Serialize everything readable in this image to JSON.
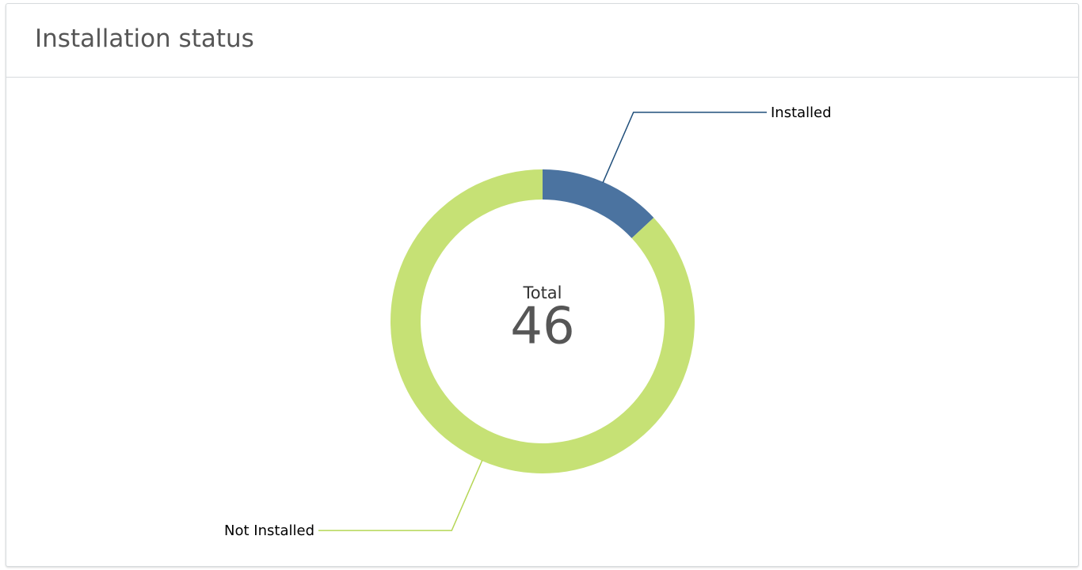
{
  "chart_data": {
    "type": "donut",
    "title": "Installation status",
    "categories": [
      "Installed",
      "Not Installed"
    ],
    "values": [
      6,
      40
    ],
    "colors": [
      "#4b73a0",
      "#c6e175"
    ],
    "center_label": "Total",
    "center_value": 46
  }
}
